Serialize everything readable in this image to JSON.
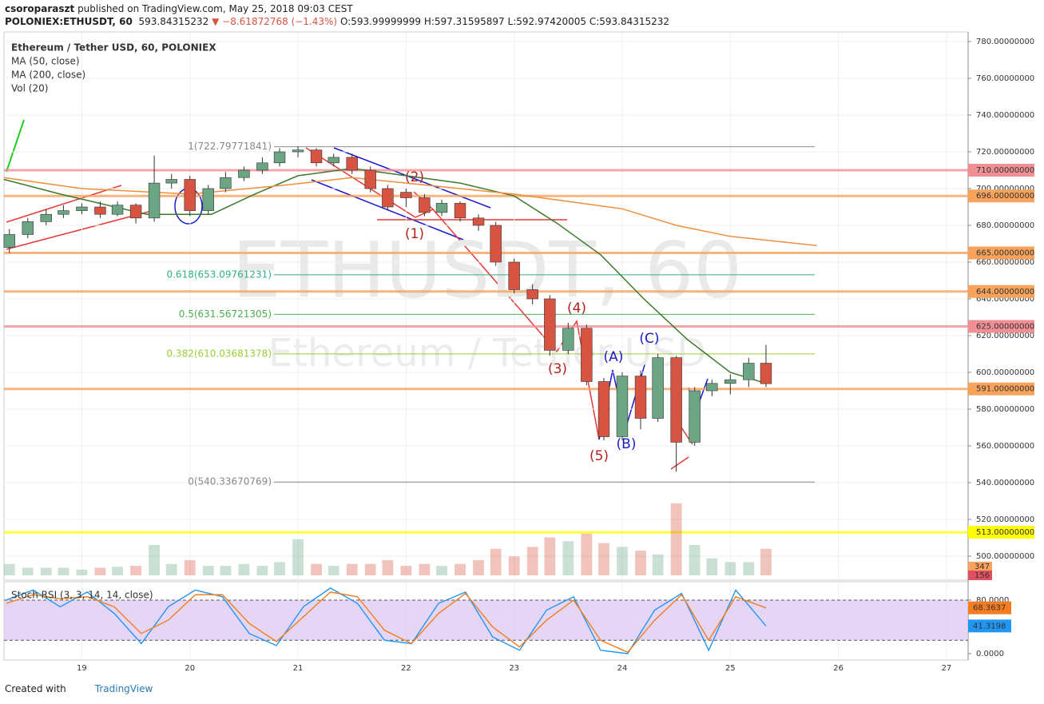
{
  "header": {
    "author": "csoroparaszt",
    "published": "published on TradingView.com, May 25, 2018 09:03 CEST",
    "symbol": "POLONIEX:ETHUSDT, 60",
    "last": "593.84315232",
    "change": "▼ −8.61872768 (−1.43%)",
    "ohlc": "O:593.99999999 H:597.31595897 L:592.97420005 C:593.84315232"
  },
  "footer": {
    "created": "Created with",
    "brand": "TradingView"
  },
  "chart_data": {
    "type": "candlestick",
    "title": "Ethereum / Tether USD, 60, POLONIEX",
    "watermark": "ETHUSDT, 60",
    "watermark_sub": "Ethereum / Tether USD",
    "indicators": [
      "MA (50, close)",
      "MA (200, close)",
      "Vol (20)"
    ],
    "up_color": "#6ba583",
    "down_color": "#d75442",
    "x": [
      18.33,
      18.5,
      18.67,
      18.83,
      19,
      19.17,
      19.33,
      19.5,
      19.67,
      19.83,
      20,
      20.17,
      20.33,
      20.5,
      20.67,
      20.83,
      21,
      21.17,
      21.33,
      21.5,
      21.67,
      21.83,
      22,
      22.17,
      22.33,
      22.5,
      22.67,
      22.83,
      23,
      23.17,
      23.33,
      23.5,
      23.67,
      23.83,
      24,
      24.17,
      24.33,
      24.5,
      24.67,
      24.83,
      25,
      25.17,
      25.33
    ],
    "open": [
      668,
      675,
      682,
      686,
      688,
      690,
      686,
      691,
      684,
      703,
      705,
      688,
      700,
      706,
      710,
      714,
      720,
      721,
      714,
      717,
      710,
      700,
      698,
      695,
      687,
      692,
      684,
      680,
      660,
      645,
      640,
      612,
      624,
      595,
      565,
      598,
      575,
      608,
      562,
      590,
      594,
      596,
      605
    ],
    "high": [
      678,
      684,
      689,
      691,
      692,
      693,
      693,
      692,
      718,
      708,
      707,
      702,
      709,
      712,
      717,
      722,
      723,
      722,
      719,
      719,
      712,
      702,
      700,
      697,
      694,
      693,
      686,
      682,
      662,
      648,
      642,
      627,
      626,
      597,
      600,
      601,
      610,
      609,
      592,
      596,
      599,
      608,
      615
    ],
    "low": [
      665,
      673,
      680,
      684,
      686,
      684,
      685,
      681,
      682,
      700,
      685,
      686,
      698,
      704,
      708,
      712,
      717,
      712,
      712,
      708,
      698,
      688,
      690,
      685,
      685,
      682,
      677,
      658,
      643,
      637,
      609,
      610,
      593,
      563,
      563,
      569,
      573,
      546,
      560,
      587,
      588,
      592,
      592
    ],
    "close": [
      675,
      682,
      686,
      688,
      690,
      686,
      691,
      684,
      703,
      705,
      688,
      700,
      706,
      710,
      714,
      720,
      721,
      714,
      717,
      710,
      700,
      690,
      695,
      687,
      692,
      684,
      680,
      660,
      645,
      640,
      612,
      624,
      595,
      565,
      598,
      575,
      608,
      562,
      590,
      594,
      596,
      605,
      593.84315232
    ],
    "volume": [
      60,
      40,
      40,
      40,
      30,
      40,
      45,
      50,
      160,
      60,
      80,
      50,
      50,
      60,
      50,
      70,
      190,
      60,
      50,
      60,
      60,
      80,
      50,
      60,
      50,
      60,
      80,
      140,
      100,
      150,
      200,
      180,
      220,
      170,
      150,
      130,
      110,
      380,
      160,
      90,
      70,
      70,
      140
    ],
    "volume_lim": [
      0,
      400
    ],
    "volume_last": [
      347,
      156
    ],
    "ma": [
      {
        "color": "#3c7a2a",
        "x": [
          18.28,
          18.8,
          19.6,
          20.2,
          20.6,
          21,
          21.5,
          22,
          22.5,
          23,
          23.4,
          23.8,
          24.2,
          24.6,
          25,
          25.33
        ],
        "values": [
          705,
          697,
          686,
          686,
          697,
          707,
          711,
          707,
          703,
          696,
          681,
          664,
          640,
          618,
          600,
          594
        ]
      },
      {
        "color": "#ef8f3c",
        "x": [
          18.28,
          19,
          20,
          20.9,
          21.5,
          22.5,
          23,
          24,
          24.5,
          25,
          25.8
        ],
        "values": [
          706,
          700,
          697,
          702,
          706,
          700,
          697,
          689,
          680,
          674,
          669
        ]
      }
    ],
    "xlim": [
      18.28,
      27.2
    ],
    "xticks": [
      19,
      20,
      21,
      22,
      23,
      24,
      25,
      26,
      27
    ],
    "ylim": [
      500,
      780
    ],
    "yticks": [
      {
        "value": 500,
        "label": "500.00000000"
      },
      {
        "value": 520,
        "label": "520.00000000"
      },
      {
        "value": 540,
        "label": "540.00000000"
      },
      {
        "value": 560,
        "label": "560.00000000"
      },
      {
        "value": 580,
        "label": "580.00000000"
      },
      {
        "value": 600,
        "label": "600.00000000"
      },
      {
        "value": 620,
        "label": "620.00000000"
      },
      {
        "value": 640,
        "label": "640.00000000"
      },
      {
        "value": 660,
        "label": "660.00000000"
      },
      {
        "value": 680,
        "label": "680.00000000"
      },
      {
        "value": 700,
        "label": "700.00000000"
      },
      {
        "value": 720,
        "label": "720.00000000"
      },
      {
        "value": 740,
        "label": "740.00000000"
      },
      {
        "value": 760,
        "label": "760.00000000"
      },
      {
        "value": 780,
        "label": "780.00000000"
      }
    ],
    "grid": true,
    "levels": [
      {
        "value": 710,
        "label": "710.00000000",
        "color": "#f08f94"
      },
      {
        "value": 696,
        "label": "696.00000000",
        "color": "#f7a35c"
      },
      {
        "value": 665,
        "label": "665.00000000",
        "color": "#f7a35c"
      },
      {
        "value": 644,
        "label": "644.00000000",
        "color": "#f7a35c"
      },
      {
        "value": 625,
        "label": "625.00000000",
        "color": "#f08f94"
      },
      {
        "value": 591,
        "label": "591.00000000",
        "color": "#f7a35c"
      },
      {
        "value": 513,
        "label": "513.00000000",
        "color": "#ffff00"
      }
    ],
    "fib": [
      {
        "value": 722.79771841,
        "label": "1(722.79771841)",
        "color": "#888888"
      },
      {
        "value": 653.09761231,
        "label": "0.618(653.09761231)",
        "color": "#2fb27c"
      },
      {
        "value": 631.56721305,
        "label": "0.5(631.56721305)",
        "color": "#4caf50"
      },
      {
        "value": 610.03681378,
        "label": "0.382(610.03681378)",
        "color": "#9ccc35"
      },
      {
        "value": 540.33670769,
        "label": "0(540.33670769)",
        "color": "#888888"
      }
    ],
    "annotations": [
      "(1)",
      "(2)",
      "(3)",
      "(4)",
      "(5)",
      "(A)",
      "(B)",
      "(C)"
    ],
    "stoch": {
      "title": "Stoch RSI (3, 3, 14, 14, close)",
      "ylim": [
        -9.6,
        105
      ],
      "band": [
        20,
        80
      ],
      "yticks": [
        {
          "value": 0,
          "label": "0.0000"
        },
        {
          "value": 80,
          "label": "80.0000"
        }
      ],
      "x": [
        18.3,
        18.55,
        18.8,
        19.05,
        19.3,
        19.55,
        19.8,
        20.05,
        20.3,
        20.55,
        20.8,
        21.05,
        21.3,
        21.55,
        21.8,
        22.05,
        22.3,
        22.55,
        22.8,
        23.05,
        23.3,
        23.55,
        23.8,
        24.05,
        24.3,
        24.55,
        24.8,
        25.05,
        25.33
      ],
      "series": [
        {
          "color": "#2196f3",
          "last_label": "41.3198",
          "values": [
            80,
            95,
            70,
            92,
            60,
            15,
            70,
            95,
            85,
            30,
            12,
            70,
            98,
            75,
            20,
            15,
            75,
            92,
            25,
            5,
            65,
            85,
            5,
            0,
            65,
            90,
            5,
            95,
            41.3198
          ]
        },
        {
          "color": "#f57c1f",
          "last_label": "68.3637",
          "values": [
            75,
            88,
            82,
            85,
            70,
            30,
            50,
            88,
            88,
            45,
            18,
            55,
            92,
            85,
            35,
            15,
            60,
            90,
            40,
            10,
            50,
            80,
            20,
            2,
            50,
            88,
            20,
            85,
            68.3637
          ]
        }
      ]
    }
  }
}
